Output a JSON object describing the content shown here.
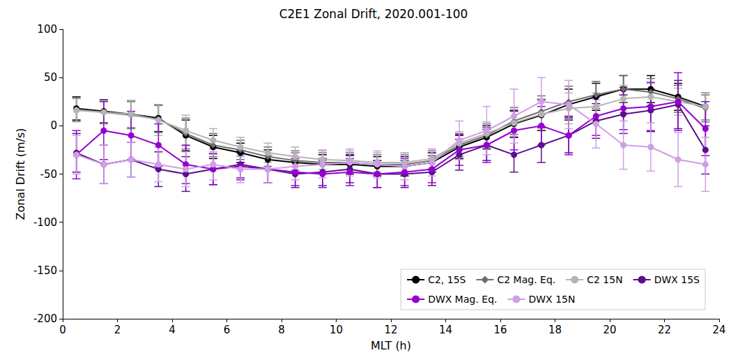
{
  "chart_data": {
    "type": "line",
    "title": "C2E1 Zonal Drift, 2020.001-100",
    "x_label": "MLT (h)",
    "y_label": "Zonal Drift (m/s)",
    "xlim": [
      0,
      24
    ],
    "xticks": [
      0,
      2,
      4,
      6,
      8,
      10,
      12,
      14,
      16,
      18,
      20,
      22,
      24
    ],
    "ylim": [
      -200,
      100
    ],
    "yticks": [
      -200,
      -150,
      -100,
      -50,
      0,
      50,
      100
    ],
    "grid": false,
    "legend": "lower right",
    "x": [
      0.5,
      1.5,
      2.5,
      3.5,
      4.5,
      5.5,
      6.5,
      7.5,
      8.5,
      9.5,
      10.5,
      11.5,
      12.5,
      13.5,
      14.5,
      15.5,
      16.5,
      17.5,
      18.5,
      19.5,
      20.5,
      21.5,
      22.5,
      23.5
    ],
    "series": [
      {
        "name": "C2, 15S",
        "color": "#000000",
        "marker": "circle",
        "values": [
          18,
          15,
          12,
          8,
          -10,
          -22,
          -28,
          -35,
          -38,
          -40,
          -40,
          -42,
          -42,
          -38,
          -22,
          -12,
          2,
          11,
          22,
          30,
          38,
          38,
          30,
          20
        ],
        "errors": [
          12,
          12,
          14,
          14,
          16,
          12,
          10,
          10,
          10,
          10,
          10,
          10,
          10,
          10,
          12,
          12,
          14,
          16,
          16,
          14,
          14,
          14,
          14,
          14
        ]
      },
      {
        "name": "C2 Mag. Eq.",
        "color": "#6e6e6e",
        "marker": "diamond",
        "values": [
          17,
          14,
          11,
          7,
          -8,
          -20,
          -25,
          -32,
          -36,
          -38,
          -38,
          -40,
          -40,
          -36,
          -20,
          -10,
          5,
          15,
          25,
          32,
          38,
          35,
          28,
          18
        ],
        "errors": [
          12,
          12,
          14,
          14,
          16,
          12,
          10,
          10,
          10,
          10,
          10,
          10,
          10,
          10,
          12,
          12,
          14,
          16,
          16,
          14,
          14,
          14,
          14,
          14
        ]
      },
      {
        "name": "C2 15N",
        "color": "#b4b4b4",
        "marker": "circle",
        "values": [
          16,
          14,
          12,
          6,
          -5,
          -15,
          -22,
          -28,
          -32,
          -35,
          -36,
          -38,
          -38,
          -34,
          -18,
          -8,
          3,
          12,
          18,
          20,
          28,
          30,
          25,
          20
        ],
        "errors": [
          12,
          12,
          14,
          16,
          16,
          12,
          10,
          10,
          10,
          10,
          10,
          10,
          10,
          10,
          12,
          12,
          14,
          16,
          16,
          14,
          14,
          14,
          14,
          14
        ]
      },
      {
        "name": "DWX 15S",
        "color": "#5b0f8c",
        "marker": "circle",
        "values": [
          -28,
          -40,
          -35,
          -45,
          -50,
          -45,
          -40,
          -45,
          -50,
          -48,
          -45,
          -50,
          -50,
          -48,
          -30,
          -20,
          -30,
          -20,
          -10,
          5,
          12,
          16,
          22,
          -25
        ],
        "errors": [
          20,
          20,
          18,
          18,
          18,
          16,
          14,
          14,
          14,
          14,
          14,
          14,
          14,
          14,
          16,
          16,
          18,
          18,
          18,
          18,
          20,
          22,
          25,
          25
        ]
      },
      {
        "name": "DWX Mag. Eq.",
        "color": "#9400d3",
        "marker": "circle",
        "values": [
          -30,
          -5,
          -10,
          -20,
          -40,
          -45,
          -42,
          -45,
          -48,
          -50,
          -48,
          -50,
          -48,
          -45,
          -25,
          -20,
          -5,
          0,
          -10,
          10,
          18,
          20,
          25,
          -3
        ],
        "errors": [
          25,
          30,
          25,
          22,
          20,
          16,
          14,
          14,
          14,
          14,
          14,
          14,
          14,
          14,
          16,
          18,
          20,
          20,
          20,
          20,
          22,
          25,
          30,
          28
        ]
      },
      {
        "name": "DWX 15N",
        "color": "#cf9fe6",
        "marker": "circle",
        "values": [
          -30,
          -40,
          -35,
          -40,
          -45,
          -40,
          -45,
          -45,
          -42,
          -40,
          -38,
          -40,
          -42,
          -38,
          -15,
          -5,
          10,
          25,
          22,
          2,
          -20,
          -22,
          -35,
          -40
        ],
        "errors": [
          20,
          20,
          18,
          18,
          18,
          16,
          14,
          14,
          14,
          14,
          14,
          14,
          14,
          14,
          20,
          25,
          28,
          25,
          25,
          25,
          25,
          25,
          28,
          28
        ]
      }
    ]
  }
}
